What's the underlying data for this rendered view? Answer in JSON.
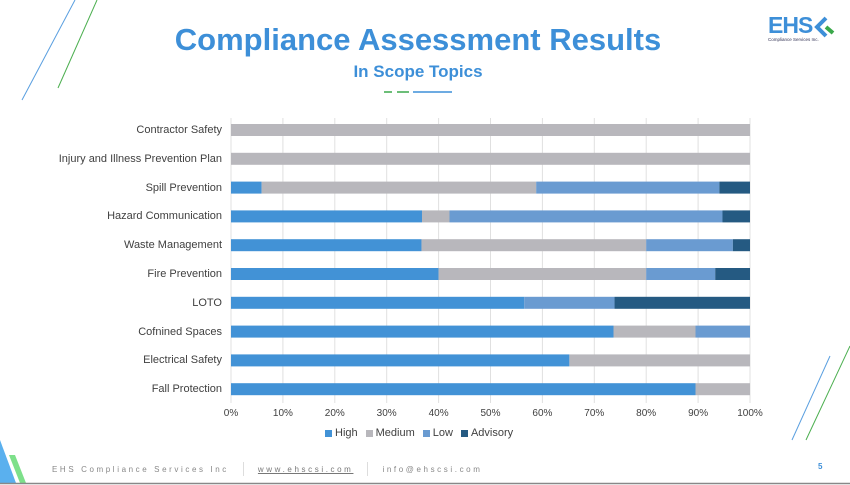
{
  "title": "Compliance Assessment Results",
  "subtitle": "In Scope Topics",
  "logo": {
    "text": "EHS",
    "tagline": "Compliance Services Inc."
  },
  "footer": {
    "company": "EHS Compliance Services Inc",
    "website": "www.ehscsi.com",
    "email": "info@ehscsi.com",
    "page": "5"
  },
  "colors": {
    "accent": "#3d8fd8",
    "High": "#4292d6",
    "Medium": "#b8b7bc",
    "Low": "#6a9bd1",
    "Advisory": "#255a82",
    "green": "#3aa84a"
  },
  "chart_data": {
    "type": "bar",
    "orientation": "horizontal",
    "stacked": "100%",
    "categories": [
      "Contractor Safety",
      "Injury and Illness Prevention Plan",
      "Spill Prevention",
      "Hazard Communication",
      "Waste Management",
      "Fire Prevention",
      "LOTO",
      "Cofnined Spaces",
      "Electrical Safety",
      "Fall Protection"
    ],
    "series": [
      {
        "name": "High",
        "values": [
          0,
          0,
          5.9,
          36.8,
          36.7,
          40,
          56.5,
          73.7,
          65.2,
          89.5
        ]
      },
      {
        "name": "Medium",
        "values": [
          100,
          100,
          52.9,
          5.3,
          43.3,
          40,
          0,
          15.8,
          34.8,
          10.5
        ]
      },
      {
        "name": "Low",
        "values": [
          0,
          0,
          35.3,
          52.6,
          16.7,
          13.3,
          17.4,
          10.5,
          0,
          0
        ]
      },
      {
        "name": "Advisory",
        "values": [
          0,
          0,
          5.9,
          5.3,
          3.3,
          6.7,
          26.1,
          0,
          0,
          0
        ]
      }
    ],
    "xlim": [
      0,
      100
    ],
    "x_ticks": [
      "0%",
      "10%",
      "20%",
      "30%",
      "40%",
      "50%",
      "60%",
      "70%",
      "80%",
      "90%",
      "100%"
    ],
    "grid": true,
    "legend": "bottom"
  }
}
